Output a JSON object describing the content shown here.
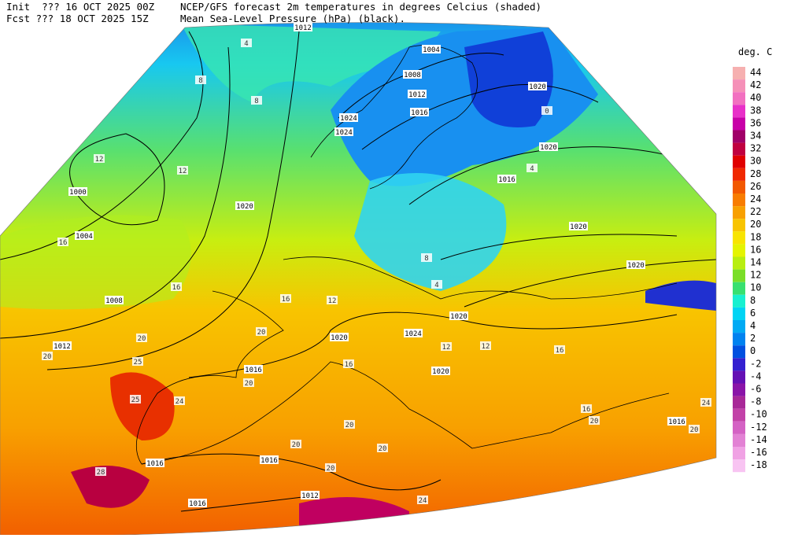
{
  "header": {
    "init": "Init  ??? 16 OCT 2025 00Z",
    "fcst": "Fcst ??? 18 OCT 2025 15Z",
    "title1": "NCEP/GFS forecast 2m temperatures in degrees Celcius (shaded)",
    "title2": "Mean Sea-Level Pressure (hPa) (black)."
  },
  "legend": {
    "title": "deg. C",
    "values": [
      44,
      42,
      40,
      38,
      36,
      34,
      32,
      30,
      28,
      26,
      24,
      22,
      20,
      18,
      16,
      14,
      12,
      10,
      8,
      6,
      4,
      2,
      0,
      -2,
      -4,
      -6,
      -8,
      -10,
      -12,
      -14,
      -16,
      -18
    ],
    "colors": [
      "#f6b0b0",
      "#f590b8",
      "#f270c0",
      "#e830c8",
      "#c800a8",
      "#a00068",
      "#c00040",
      "#e00000",
      "#f02800",
      "#f25800",
      "#f87c00",
      "#f8a000",
      "#f8c400",
      "#f8e400",
      "#e4f400",
      "#b8ee10",
      "#7ade28",
      "#38e070",
      "#18f0d0",
      "#00d4f4",
      "#00aaf4",
      "#0082f0",
      "#0050e0",
      "#3420d0",
      "#6410b4",
      "#8a14a8",
      "#a82898",
      "#c242a8",
      "#d462c4",
      "#e282d4",
      "#f0a2e4",
      "#f8c4f2"
    ]
  },
  "isobar_labels": [
    1012,
    1004,
    1008,
    1012,
    1016,
    1020,
    1020,
    1016,
    1020,
    1020,
    1024,
    1024,
    1020,
    1000,
    1004,
    1008,
    1012,
    1016,
    1020,
    1020,
    1024,
    1020,
    1016,
    1016,
    1016,
    1012,
    1016
  ],
  "temperature_labels": [
    4,
    8,
    8,
    12,
    12,
    16,
    16,
    20,
    20,
    25,
    25,
    24,
    28,
    20,
    20,
    16,
    12,
    8,
    4,
    4,
    0,
    20,
    20,
    20,
    24,
    16,
    16,
    20,
    12,
    12,
    16,
    20,
    20,
    24
  ]
}
